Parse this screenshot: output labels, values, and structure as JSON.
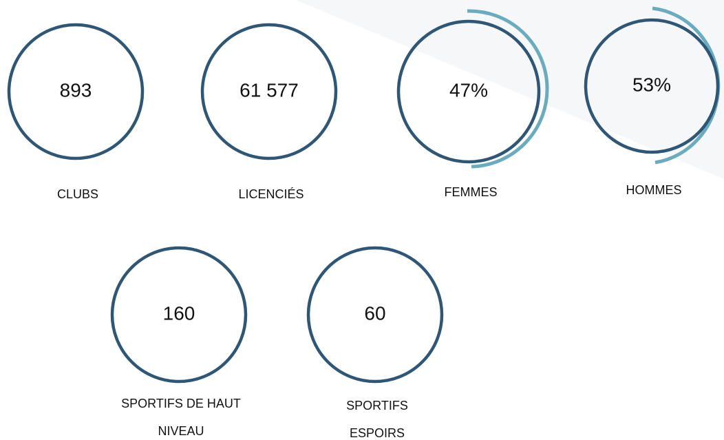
{
  "items": [
    {
      "value": "893",
      "label": [
        "CLUBS"
      ]
    },
    {
      "value": "61 577",
      "label": [
        "LICENCIÉS"
      ]
    },
    {
      "value": "47%",
      "label": [
        "FEMMES"
      ]
    },
    {
      "value": "53%",
      "label": [
        "HOMMES"
      ]
    },
    {
      "value": "160",
      "label": [
        "SPORTIFS DE HAUT",
        "NIVEAU"
      ]
    },
    {
      "value": "60",
      "label": [
        "SPORTIFS",
        "ESPOIRS"
      ]
    }
  ]
}
